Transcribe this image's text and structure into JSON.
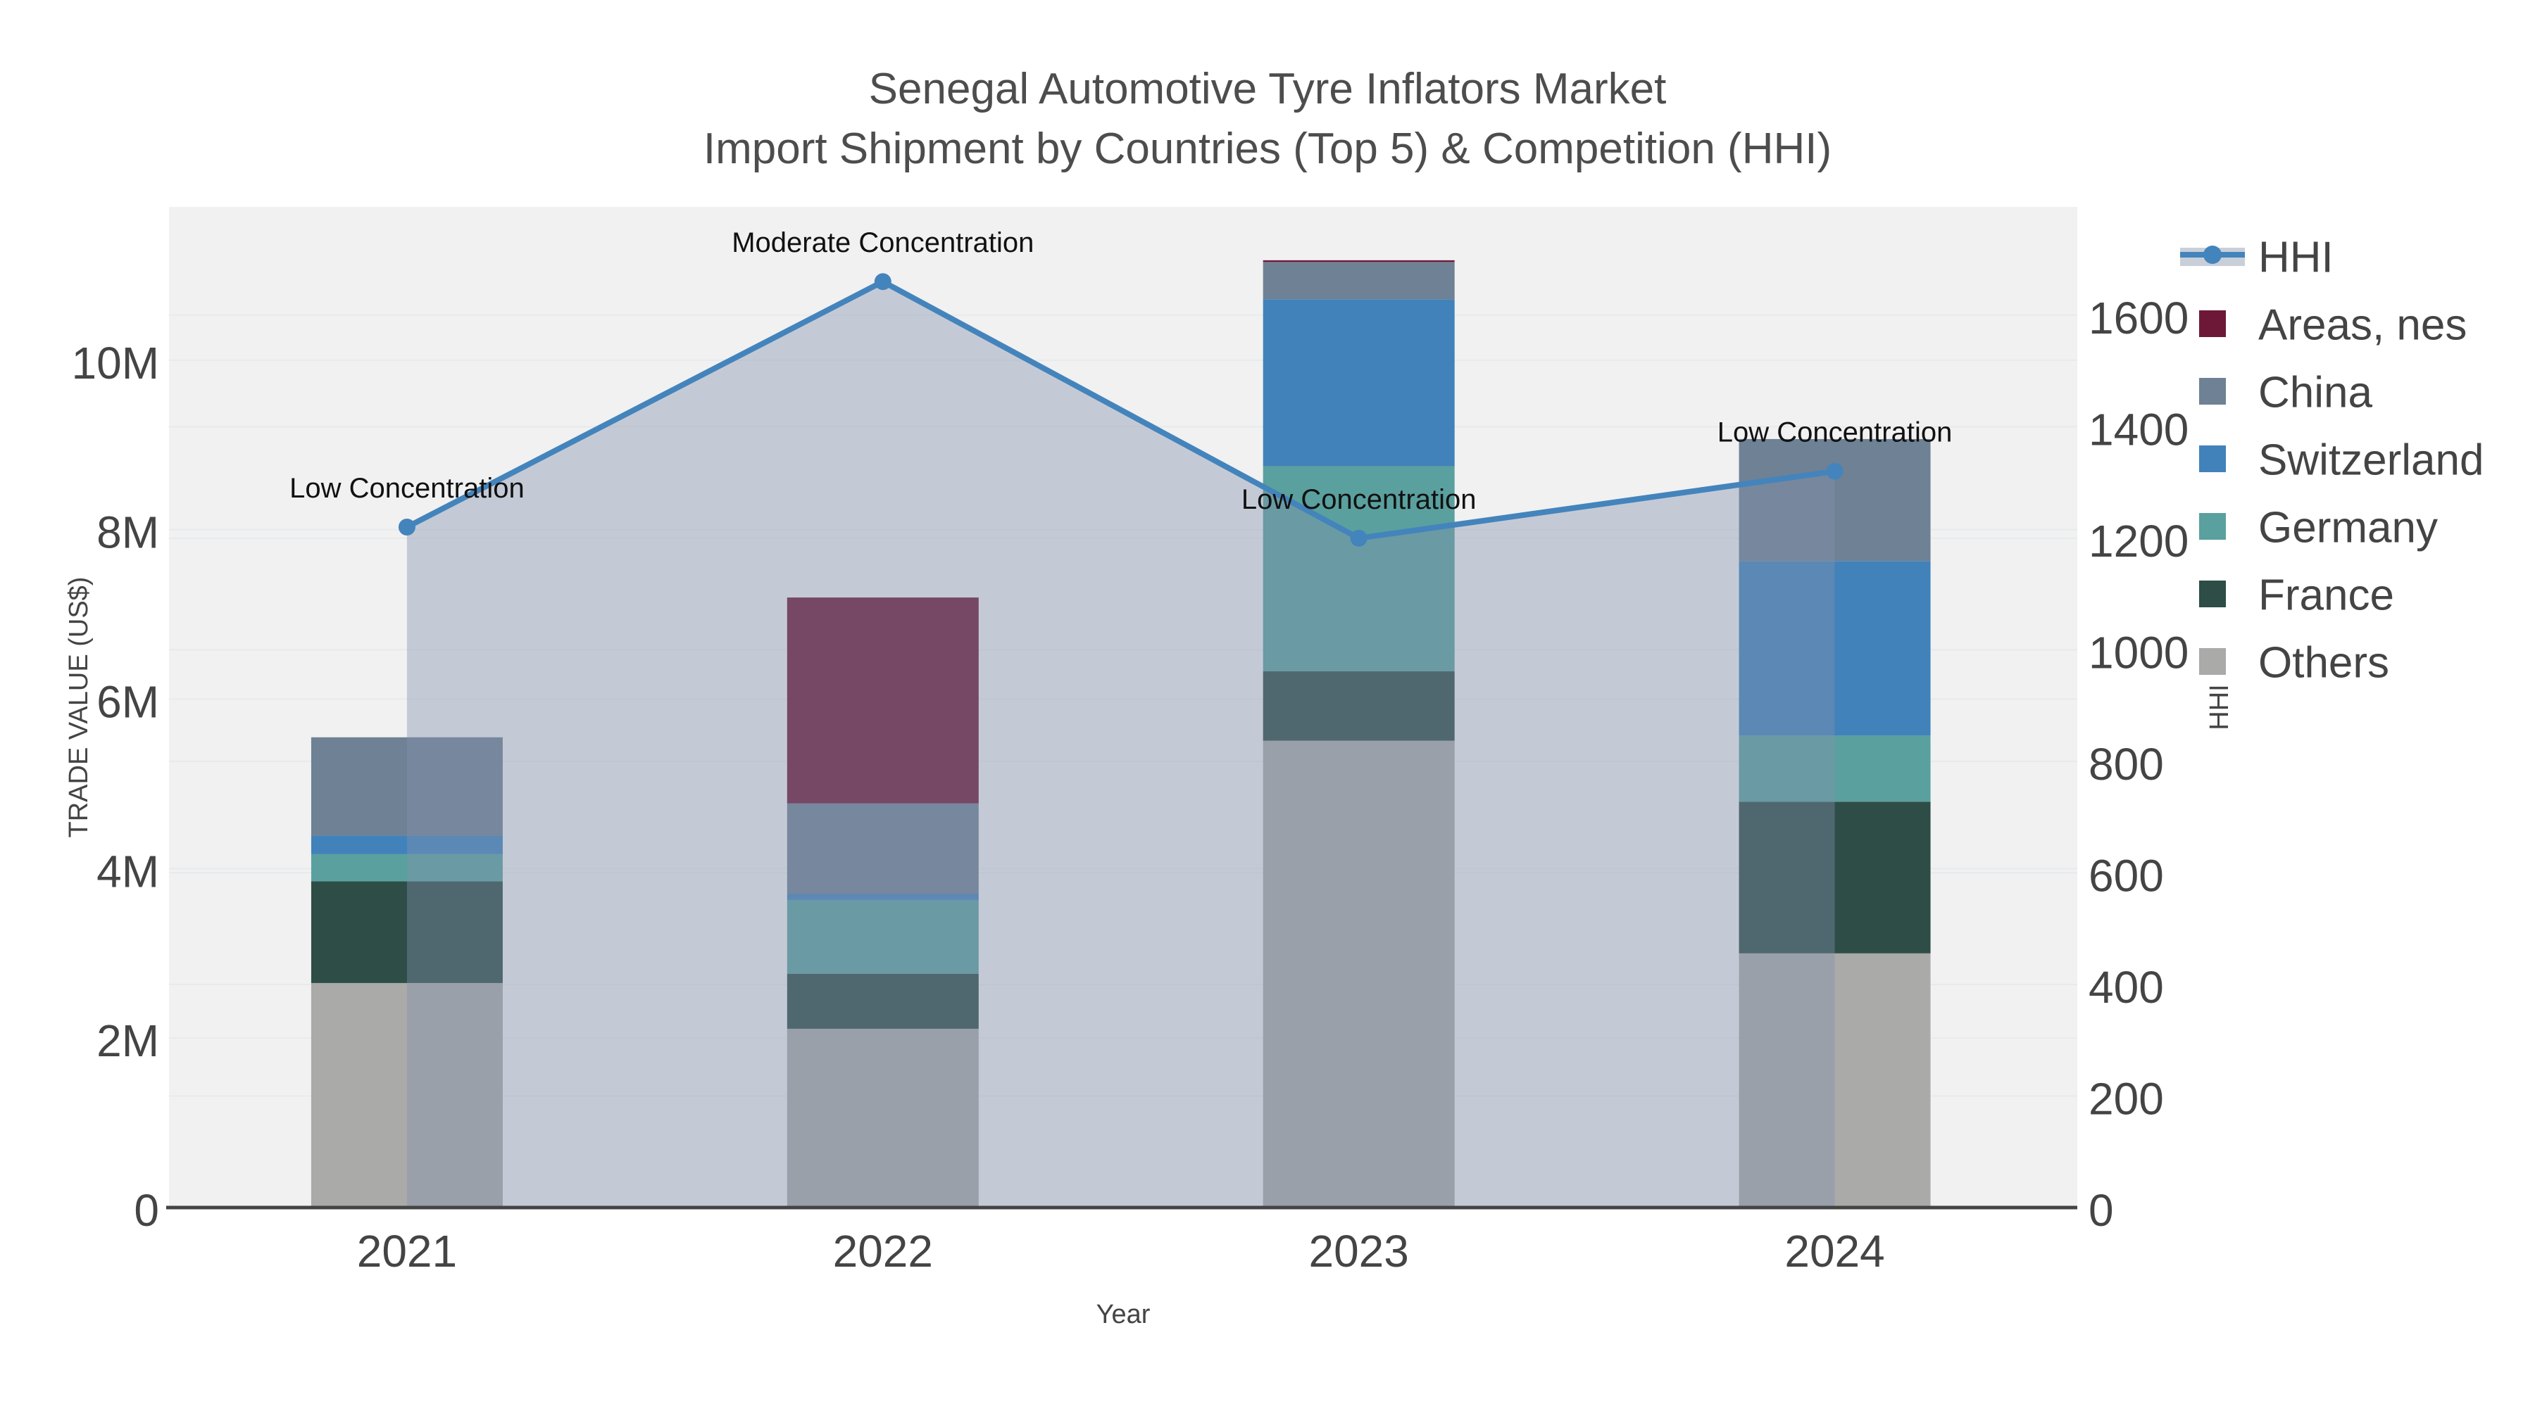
{
  "title": {
    "line1": "Senegal Automotive Tyre Inflators Market",
    "line2": "Import Shipment by Countries (Top 5) & Competition (HHI)"
  },
  "axes": {
    "x": {
      "title": "Year",
      "categories": [
        "2021",
        "2022",
        "2023",
        "2024"
      ]
    },
    "y_left": {
      "title": "TRADE VALUE (US$)",
      "tick_labels": [
        "0",
        "2M",
        "4M",
        "6M",
        "8M",
        "10M"
      ],
      "tick_values": [
        0,
        2,
        4,
        6,
        8,
        10
      ],
      "max_value": 11.81
    },
    "y_right": {
      "title": "HHI",
      "tick_labels": [
        "0",
        "200",
        "400",
        "600",
        "800",
        "1000",
        "1200",
        "1400",
        "1600"
      ],
      "tick_values": [
        0,
        200,
        400,
        600,
        800,
        1000,
        1200,
        1400,
        1600
      ],
      "max_value": 1794
    }
  },
  "legend": {
    "items": [
      {
        "label": "HHI",
        "type": "line",
        "color": "#4484bc",
        "band_color": "#c9cfd9"
      },
      {
        "label": "Areas, nes",
        "type": "swatch",
        "color": "#6e1838"
      },
      {
        "label": "China",
        "type": "swatch",
        "color": "#6f8194"
      },
      {
        "label": "Switzerland",
        "type": "swatch",
        "color": "#4182ba"
      },
      {
        "label": "Germany",
        "type": "swatch",
        "color": "#5aa09e"
      },
      {
        "label": "France",
        "type": "swatch",
        "color": "#2d4d46"
      },
      {
        "label": "Others",
        "type": "swatch",
        "color": "#aaaaa8"
      }
    ]
  },
  "chart_data": {
    "type": "bar",
    "subtype": "stacked-bar-with-line",
    "categories": [
      "2021",
      "2022",
      "2023",
      "2024"
    ],
    "series": [
      {
        "name": "Others",
        "color": "#aaaaa8",
        "values": [
          2.65,
          2.11,
          5.51,
          3.0
        ]
      },
      {
        "name": "France",
        "color": "#2d4d46",
        "values": [
          1.2,
          0.65,
          0.82,
          1.79
        ]
      },
      {
        "name": "Germany",
        "color": "#5aa09e",
        "values": [
          0.32,
          0.87,
          2.42,
          0.78
        ]
      },
      {
        "name": "Switzerland",
        "color": "#4182ba",
        "values": [
          0.22,
          0.07,
          1.97,
          2.06
        ]
      },
      {
        "name": "China",
        "color": "#6f8194",
        "values": [
          1.16,
          1.07,
          0.44,
          1.44
        ]
      },
      {
        "name": "Areas, nes",
        "color": "#6e1838",
        "values": [
          0.0,
          2.43,
          0.02,
          0.0
        ]
      }
    ],
    "bar_totals_M": [
      5.55,
      7.2,
      11.18,
      9.07
    ],
    "line_series": {
      "name": "HHI",
      "color": "#4484bc",
      "marker_color": "#4484bc",
      "area_fill_color": "rgba(130,145,172,0.40)",
      "values": [
        1220,
        1660,
        1200,
        1320
      ],
      "annotations": [
        "Low Concentration",
        "Moderate Concentration",
        "Low Concentration",
        "Low Concentration"
      ]
    },
    "title": "Senegal Automotive Tyre Inflators Market — Import Shipment by Countries (Top 5) & Competition (HHI)",
    "xlabel": "Year",
    "ylabel_left": "TRADE VALUE (US$)",
    "ylabel_right": "HHI",
    "ylim_left_M": [
      0,
      11.81
    ],
    "ylim_right": [
      0,
      1794
    ],
    "grid": true,
    "legend_position": "right",
    "plot_bg_color": "#f1f1f1",
    "grid_color": "#e7eaec",
    "axisline_color": "#444444",
    "tick_color": "#444444",
    "annotation_color": "#111111"
  }
}
